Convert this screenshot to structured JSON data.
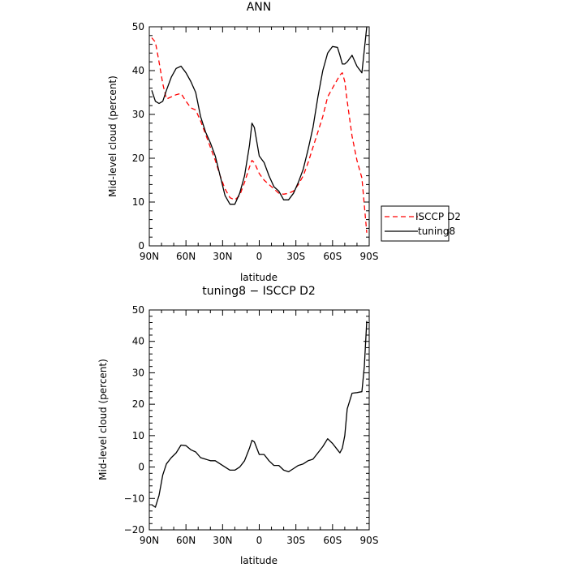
{
  "colors": {
    "isccp": "#ff0000",
    "tuning8": "#000000"
  },
  "chart_data": [
    {
      "type": "line",
      "title": "ANN",
      "xlabel": "latitude",
      "ylabel": "Mid-level cloud (percent)",
      "xlim": [
        -90,
        90
      ],
      "ylim": [
        0,
        50
      ],
      "x_ticks": [
        -90,
        -60,
        -30,
        0,
        30,
        60,
        90
      ],
      "x_tick_labels": [
        "90N",
        "60N",
        "30N",
        "0",
        "30S",
        "60S",
        "90S"
      ],
      "y_ticks": [
        0,
        10,
        20,
        30,
        40,
        50
      ],
      "y_tick_labels": [
        "0",
        "10",
        "20",
        "30",
        "40",
        "50"
      ],
      "legend_position": "right",
      "series": [
        {
          "name": "ISCCP D2",
          "color": "#ff0000",
          "dash": "dashed",
          "x": [
            -88,
            -85,
            -82,
            -79,
            -76,
            -72,
            -68,
            -64,
            -60,
            -56,
            -52,
            -48,
            -44,
            -40,
            -36,
            -32,
            -28,
            -24,
            -20,
            -16,
            -12,
            -8,
            -6,
            -4,
            0,
            4,
            8,
            12,
            16,
            20,
            24,
            28,
            32,
            36,
            40,
            44,
            48,
            52,
            56,
            60,
            64,
            66,
            68,
            70,
            72,
            76,
            80,
            84,
            88
          ],
          "y": [
            47.5,
            46.5,
            42,
            37,
            33.5,
            34,
            34.5,
            34.8,
            33,
            31.5,
            31,
            28.5,
            25.5,
            22.5,
            19.5,
            16,
            13,
            11,
            10.5,
            11.5,
            14.5,
            18,
            19.5,
            19,
            16.5,
            15,
            14,
            13,
            12,
            11.8,
            12,
            12.5,
            14,
            16,
            19,
            22.5,
            26,
            29.5,
            34,
            36,
            38,
            39,
            39.5,
            37.5,
            33,
            25,
            19.5,
            15.5,
            3
          ]
        },
        {
          "name": "tuning8",
          "color": "#000000",
          "dash": "solid",
          "x": [
            -88,
            -85,
            -82,
            -79,
            -76,
            -72,
            -68,
            -64,
            -60,
            -56,
            -52,
            -48,
            -44,
            -40,
            -36,
            -32,
            -28,
            -24,
            -20,
            -16,
            -12,
            -8,
            -6,
            -4,
            0,
            4,
            8,
            12,
            16,
            20,
            24,
            28,
            32,
            36,
            40,
            44,
            48,
            52,
            56,
            60,
            64,
            66,
            68,
            70,
            72,
            76,
            80,
            84,
            88
          ],
          "y": [
            35.5,
            33,
            32.5,
            33,
            35.5,
            38.5,
            40.5,
            41,
            39.5,
            37.5,
            35,
            29.5,
            26,
            23.5,
            20.5,
            16,
            11.5,
            9.5,
            9.5,
            12,
            16,
            23,
            28,
            27,
            20.5,
            19,
            16,
            13.5,
            12.5,
            10.5,
            10.5,
            12,
            14.5,
            17.5,
            22,
            27,
            34,
            40,
            44,
            45.5,
            45.3,
            43.5,
            41.5,
            41.5,
            42,
            43.5,
            41,
            39.5,
            50
          ]
        }
      ]
    },
    {
      "type": "line",
      "title": "tuning8 − ISCCP D2",
      "xlabel": "latitude",
      "ylabel": "Mid-level cloud (percent)",
      "xlim": [
        -90,
        90
      ],
      "ylim": [
        -20,
        50
      ],
      "x_ticks": [
        -90,
        -60,
        -30,
        0,
        30,
        60,
        90
      ],
      "x_tick_labels": [
        "90N",
        "60N",
        "30N",
        "0",
        "30S",
        "60S",
        "90S"
      ],
      "y_ticks": [
        -20,
        -10,
        0,
        10,
        20,
        30,
        40,
        50
      ],
      "y_tick_labels": [
        "−20",
        "−10",
        "0",
        "10",
        "20",
        "30",
        "40",
        "50"
      ],
      "series": [
        {
          "color": "#000000",
          "dash": "solid",
          "x": [
            -88,
            -85,
            -82,
            -79,
            -76,
            -72,
            -68,
            -64,
            -60,
            -56,
            -52,
            -48,
            -44,
            -40,
            -36,
            -32,
            -28,
            -24,
            -20,
            -16,
            -12,
            -8,
            -6,
            -4,
            0,
            4,
            8,
            12,
            16,
            20,
            24,
            28,
            32,
            36,
            40,
            44,
            48,
            52,
            56,
            60,
            64,
            66,
            68,
            70,
            72,
            76,
            80,
            84,
            86,
            88
          ],
          "y": [
            -12,
            -12.8,
            -9,
            -2.5,
            1,
            3,
            4.5,
            7,
            6.8,
            5.5,
            4.8,
            3,
            2.5,
            2,
            2,
            1,
            0,
            -1,
            -1,
            0,
            2,
            6,
            8.5,
            8,
            4,
            4,
            2,
            0.5,
            0.5,
            -1,
            -1.5,
            -0.5,
            0.5,
            1,
            2,
            2.5,
            4.5,
            6.5,
            9,
            7.5,
            5.5,
            4.5,
            6,
            10,
            18.5,
            23.5,
            23.7,
            24,
            32,
            46.5
          ]
        }
      ]
    }
  ]
}
